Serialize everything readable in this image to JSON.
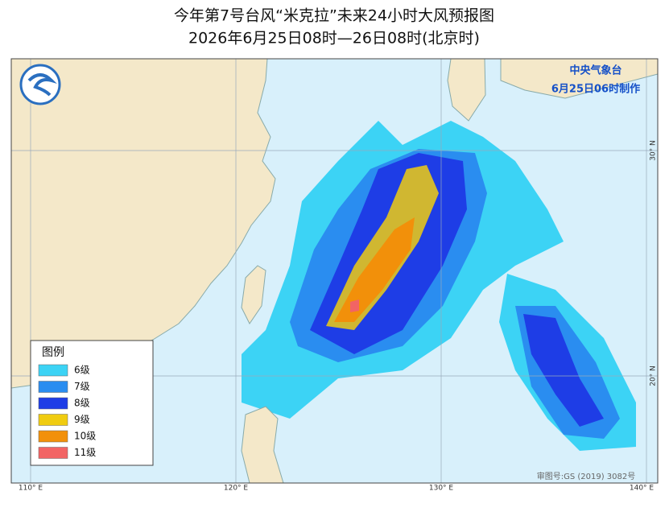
{
  "header": {
    "title": "今年第7号台风“米克拉”未来24小时大风预报图",
    "subtitle": "2026年6月25日08时—26日08时(北京时)"
  },
  "agency": "中央气象台",
  "issued": "6月25日06时制作",
  "legend": {
    "title": "图例",
    "items": [
      {
        "label": "6级",
        "color": "#3cd3f5"
      },
      {
        "label": "7级",
        "color": "#2a8df0"
      },
      {
        "label": "8级",
        "color": "#1e3de6"
      },
      {
        "label": "9级",
        "color": "#f0cc10"
      },
      {
        "label": "10级",
        "color": "#f2900a"
      },
      {
        "label": "11级",
        "color": "#f26464"
      }
    ]
  },
  "map": {
    "lon_labels": [
      "110° E",
      "120° E",
      "130° E",
      "140° E"
    ],
    "lat_labels": [
      "30° N",
      "20° N"
    ]
  },
  "approval": "审图号:GS (2019) 3082号"
}
